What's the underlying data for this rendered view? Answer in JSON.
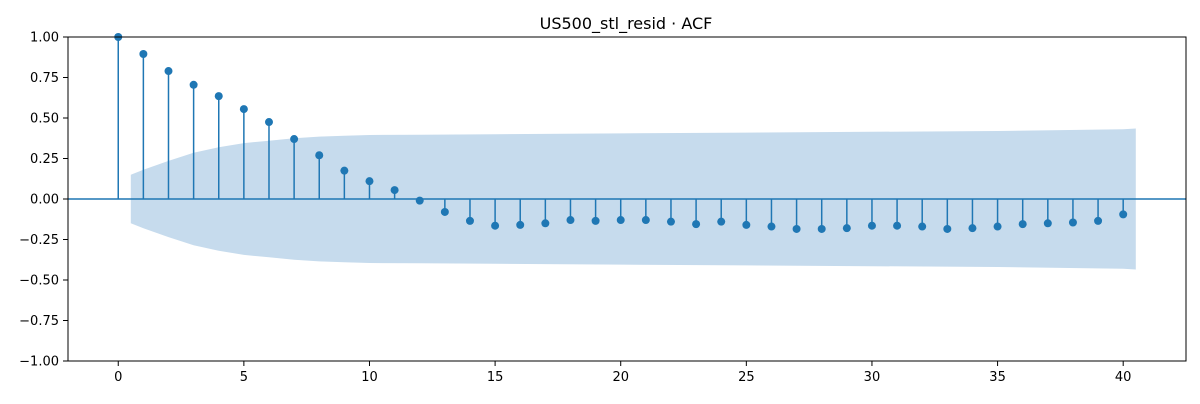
{
  "chart_data": {
    "type": "stem",
    "title": "US500_stl_resid · ACF",
    "xlabel": "",
    "ylabel": "",
    "xlim": [
      -2,
      42.5
    ],
    "ylim": [
      -1.0,
      1.0
    ],
    "x_ticks": [
      0,
      5,
      10,
      15,
      20,
      25,
      30,
      35,
      40
    ],
    "y_ticks": [
      1.0,
      0.75,
      0.5,
      0.25,
      0.0,
      -0.25,
      -0.5,
      -0.75,
      -1.0
    ],
    "x_tick_labels": [
      "0",
      "5",
      "10",
      "15",
      "20",
      "25",
      "30",
      "35",
      "40"
    ],
    "y_tick_labels": [
      "1.00",
      "0.75",
      "0.50",
      "0.25",
      "0.00",
      "−0.25",
      "−0.50",
      "−0.75",
      "−1.00"
    ],
    "grid": false,
    "lags": [
      0,
      1,
      2,
      3,
      4,
      5,
      6,
      7,
      8,
      9,
      10,
      11,
      12,
      13,
      14,
      15,
      16,
      17,
      18,
      19,
      20,
      21,
      22,
      23,
      24,
      25,
      26,
      27,
      28,
      29,
      30,
      31,
      32,
      33,
      34,
      35,
      36,
      37,
      38,
      39,
      40
    ],
    "acf": [
      1.0,
      0.895,
      0.79,
      0.705,
      0.635,
      0.555,
      0.475,
      0.37,
      0.27,
      0.175,
      0.11,
      0.055,
      -0.01,
      -0.08,
      -0.135,
      -0.165,
      -0.16,
      -0.15,
      -0.13,
      -0.135,
      -0.13,
      -0.13,
      -0.14,
      -0.155,
      -0.14,
      -0.16,
      -0.17,
      -0.185,
      -0.185,
      -0.18,
      -0.165,
      -0.165,
      -0.17,
      -0.185,
      -0.18,
      -0.17,
      -0.155,
      -0.15,
      -0.145,
      -0.135,
      -0.095
    ],
    "confidence_band": {
      "lags": [
        0.5,
        1,
        2,
        3,
        4,
        5,
        6,
        7,
        8,
        9,
        10,
        12,
        15,
        20,
        25,
        30,
        35,
        40,
        40.5
      ],
      "upper": [
        0.15,
        0.18,
        0.235,
        0.285,
        0.32,
        0.345,
        0.36,
        0.375,
        0.385,
        0.39,
        0.395,
        0.397,
        0.4,
        0.405,
        0.41,
        0.415,
        0.42,
        0.43,
        0.435
      ]
    },
    "colors": {
      "stem": "#1f77b4",
      "band": "#c6dbed",
      "zero_line": "#1f77b4",
      "axes": "#000000"
    }
  }
}
